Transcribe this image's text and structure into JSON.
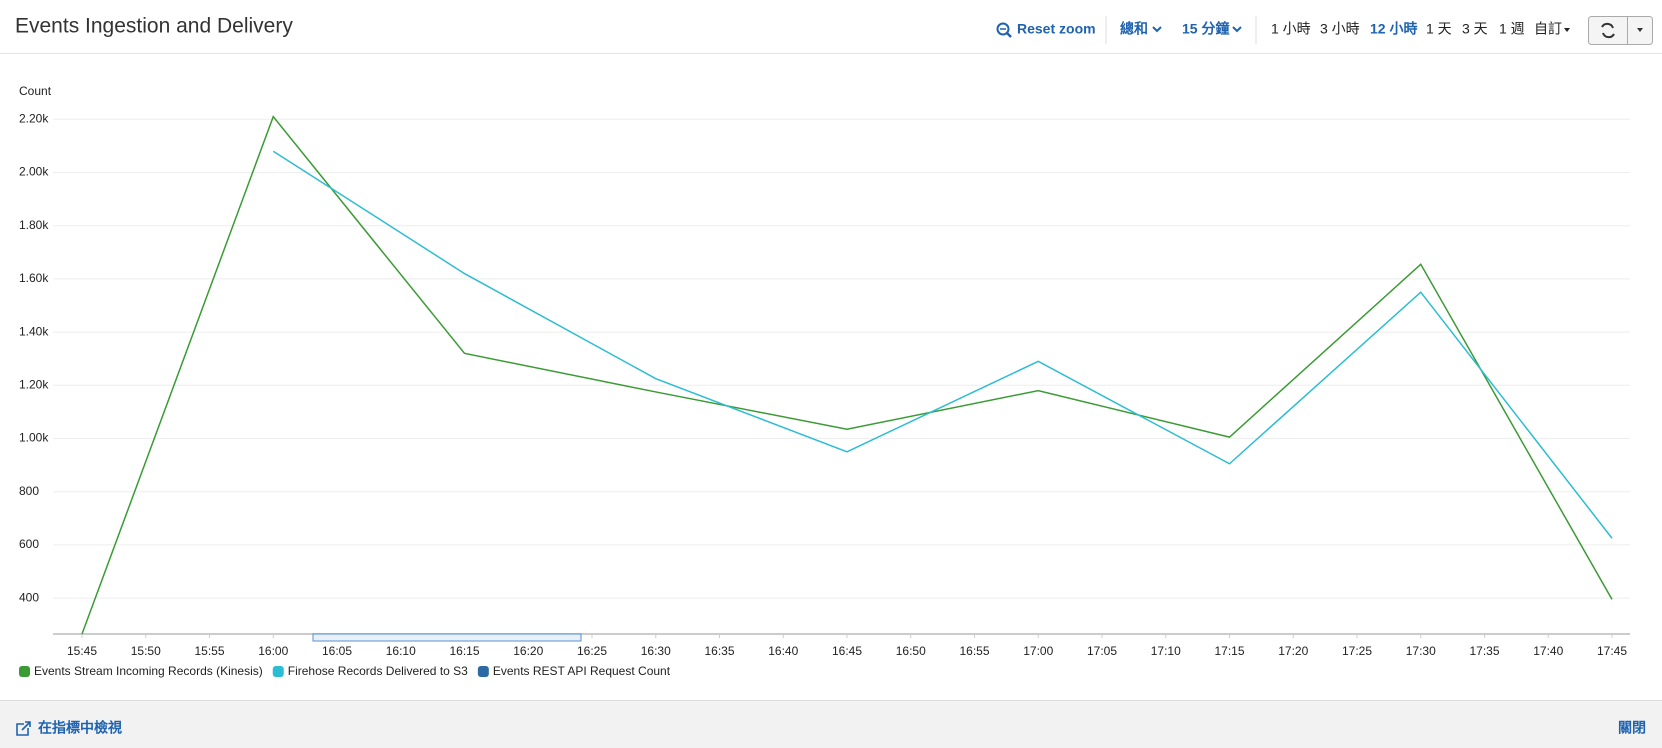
{
  "header": {
    "title": "Events Ingestion and Delivery",
    "reset_zoom": "Reset zoom",
    "statistic": "總和",
    "period": "15 分鐘",
    "ranges": [
      "1 小時",
      "3 小時",
      "12 小時",
      "1 天",
      "3 天",
      "1 週"
    ],
    "active_range": 2,
    "custom": "自訂"
  },
  "chart_data": {
    "type": "line",
    "y_label": "Count",
    "x": [
      "15:45",
      "16:00",
      "16:15",
      "16:30",
      "16:45",
      "17:00",
      "17:15",
      "17:30",
      "17:45"
    ],
    "xticks": [
      "15:45",
      "15:50",
      "15:55",
      "16:00",
      "16:05",
      "16:10",
      "16:15",
      "16:20",
      "16:25",
      "16:30",
      "16:35",
      "16:40",
      "16:45",
      "16:50",
      "16:55",
      "17:00",
      "17:05",
      "17:10",
      "17:15",
      "17:20",
      "17:25",
      "17:30",
      "17:35",
      "17:40",
      "17:45"
    ],
    "ylim": [
      265,
      2250
    ],
    "yticks": [
      400,
      600,
      800,
      {
        "value": 1000,
        "label": "1.00k"
      },
      {
        "value": 1200,
        "label": "1.20k"
      },
      {
        "value": 1400,
        "label": "1.40k"
      },
      {
        "value": 1600,
        "label": "1.60k"
      },
      {
        "value": 1800,
        "label": "1.80k"
      },
      {
        "value": 2000,
        "label": "2.00k"
      },
      {
        "value": 2200,
        "label": "2.20k"
      }
    ],
    "grid": true,
    "series": [
      {
        "name": "Events Stream Incoming Records (Kinesis)",
        "color": "#3a9b35",
        "values": [
          265,
          2210,
          1320,
          1175,
          1035,
          1180,
          1005,
          1655,
          395
        ]
      },
      {
        "name": "Firehose Records Delivered to S3",
        "color": "#2bbdd4",
        "values": [
          null,
          2080,
          1620,
          1225,
          950,
          1290,
          905,
          1550,
          625
        ]
      },
      {
        "name": "Events REST API Request Count",
        "color": "#2d6aa3",
        "values": [
          null,
          null,
          null,
          null,
          null,
          null,
          null,
          null,
          null
        ]
      }
    ]
  },
  "footer": {
    "link": "在指標中檢視",
    "close": "關閉"
  }
}
